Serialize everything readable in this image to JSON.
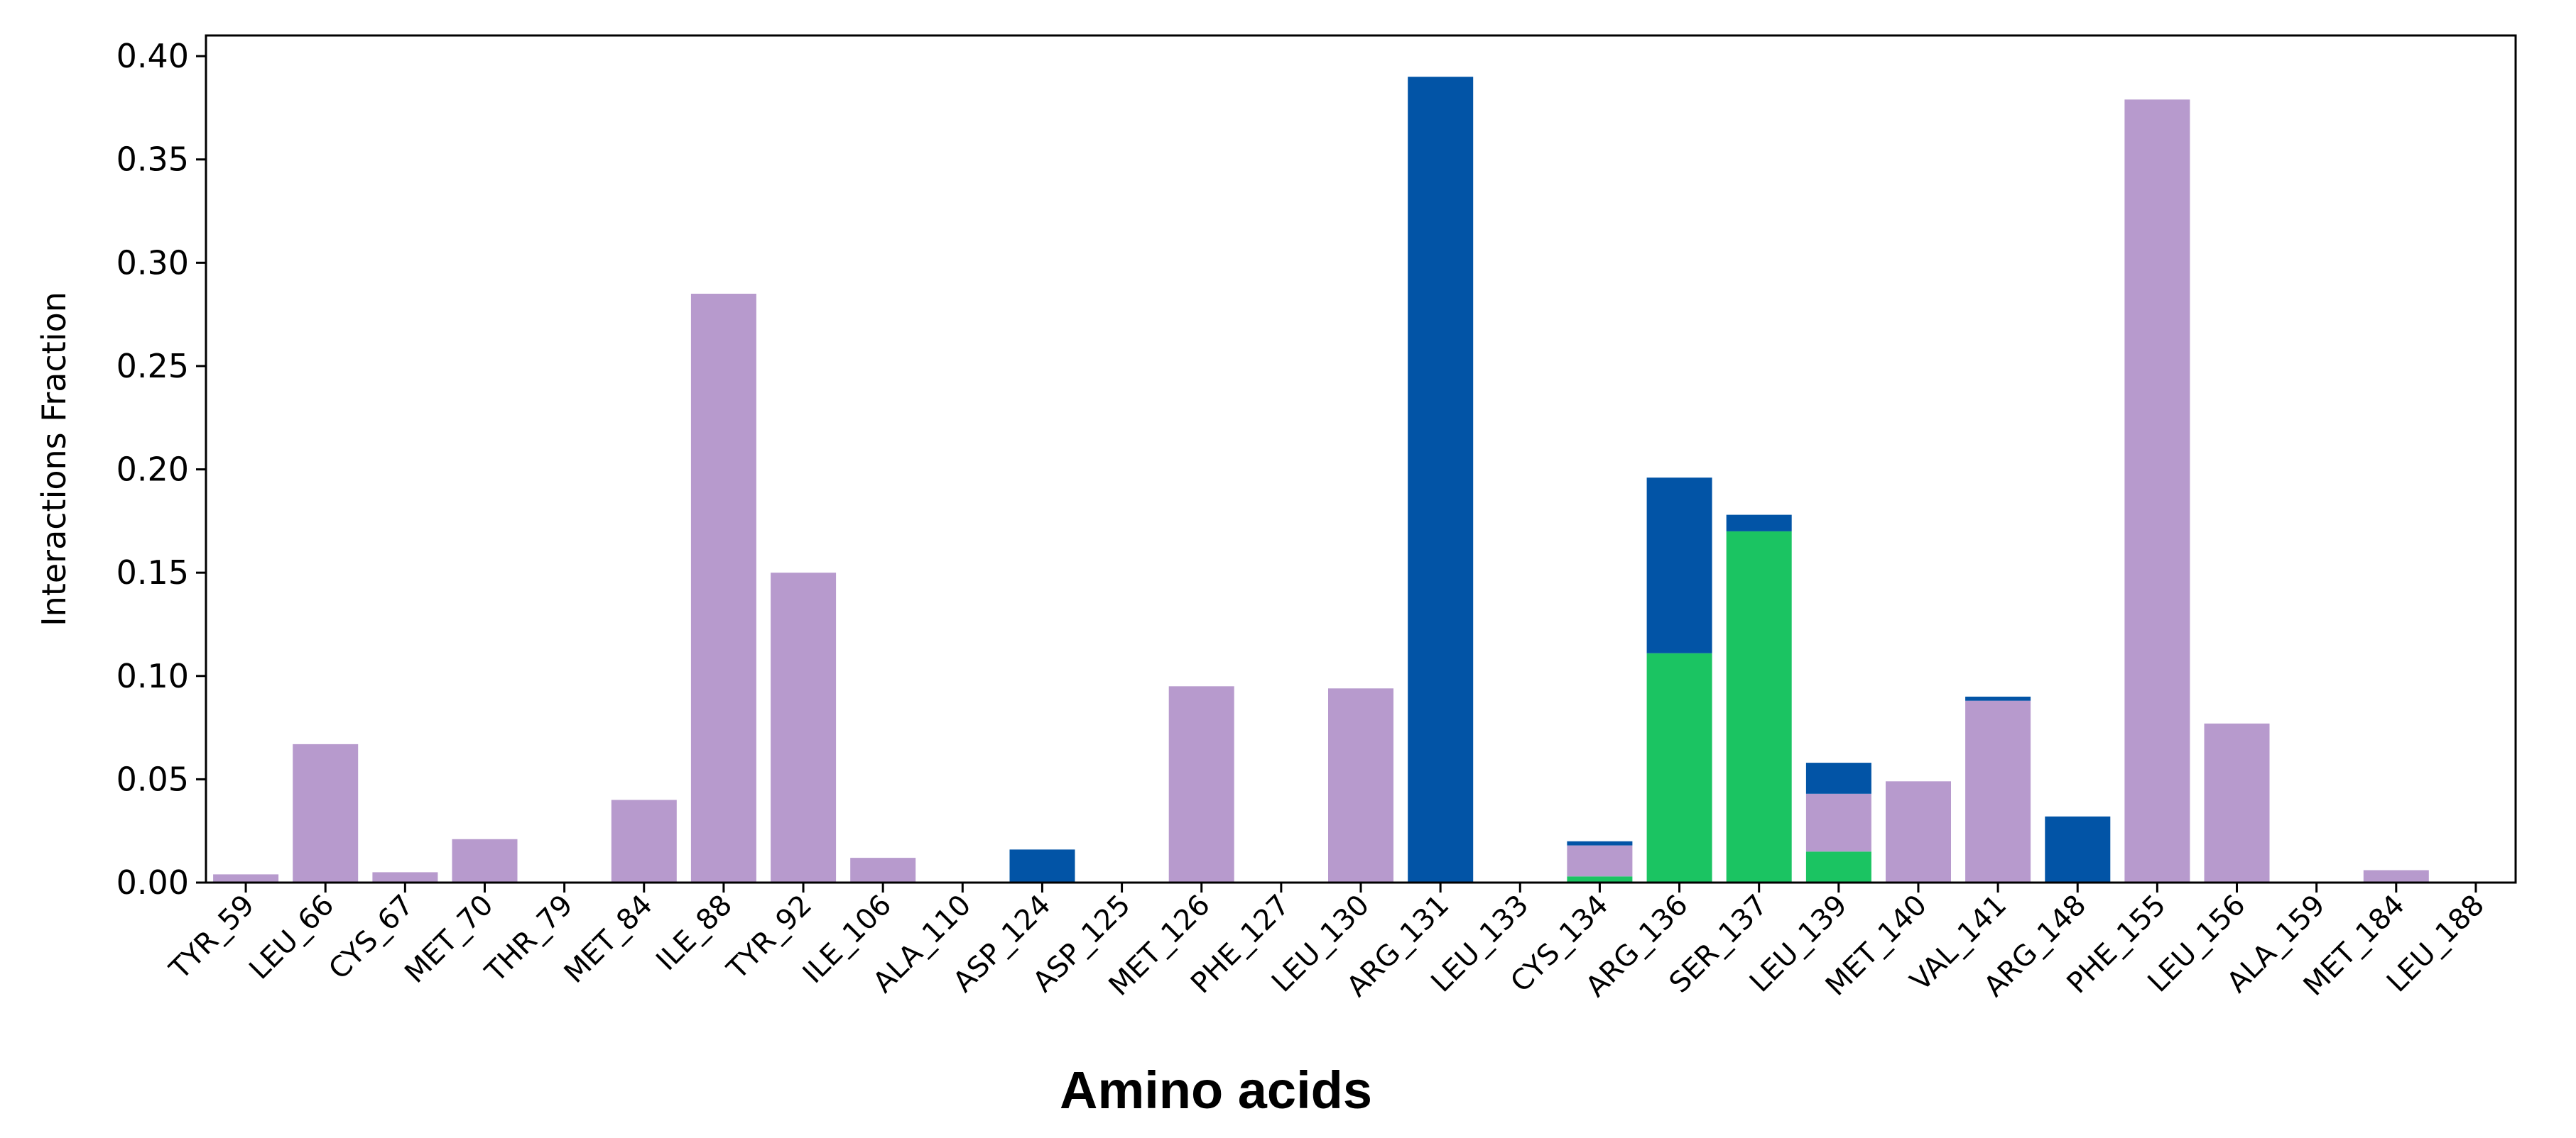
{
  "chart_data": {
    "type": "bar",
    "stacked": true,
    "title": "",
    "xlabel": "Amino acids",
    "ylabel": "Interactions Fraction",
    "ylim": [
      0,
      0.41
    ],
    "yticks": [
      "0.00",
      "0.05",
      "0.10",
      "0.15",
      "0.20",
      "0.25",
      "0.30",
      "0.35",
      "0.40"
    ],
    "grid": false,
    "legend": "none",
    "categories": [
      "TYR_59",
      "LEU_66",
      "CYS_67",
      "MET_70",
      "THR_79",
      "MET_84",
      "ILE_88",
      "TYR_92",
      "ILE_106",
      "ALA_110",
      "ASP_124",
      "ASP_125",
      "MET_126",
      "PHE_127",
      "LEU_130",
      "ARG_131",
      "LEU_133",
      "CYS_134",
      "ARG_136",
      "SER_137",
      "LEU_139",
      "MET_140",
      "VAL_141",
      "ARG_148",
      "PHE_155",
      "LEU_156",
      "ALA_159",
      "MET_184",
      "LEU_188"
    ],
    "series": [
      {
        "color": "#1bc462",
        "values": [
          0,
          0,
          0,
          0,
          0,
          0,
          0,
          0,
          0,
          0,
          0,
          0,
          0,
          0,
          0,
          0,
          0,
          0.003,
          0.111,
          0.17,
          0.015,
          0,
          0,
          0,
          0,
          0,
          0,
          0,
          0
        ]
      },
      {
        "color": "#b79acd",
        "values": [
          0.004,
          0.067,
          0.005,
          0.021,
          0,
          0.04,
          0.285,
          0.15,
          0.012,
          0,
          0,
          0,
          0.095,
          0,
          0.094,
          0,
          0,
          0.015,
          0,
          0,
          0.028,
          0.049,
          0.088,
          0,
          0.379,
          0.077,
          0,
          0.006,
          0
        ]
      },
      {
        "color": "#0254a6",
        "values": [
          0,
          0,
          0,
          0,
          0,
          0,
          0,
          0,
          0,
          0,
          0.016,
          0,
          0,
          0,
          0,
          0.39,
          0,
          0.002,
          0.085,
          0.008,
          0.015,
          0,
          0.002,
          0.032,
          0,
          0,
          0,
          0,
          0
        ]
      }
    ]
  }
}
